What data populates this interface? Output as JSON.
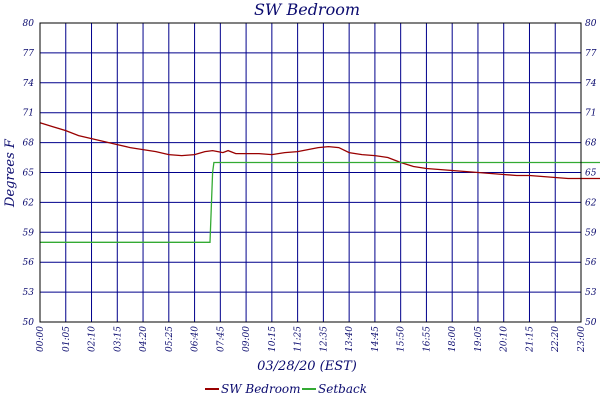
{
  "chart_data": {
    "type": "line",
    "title": "SW Bedroom",
    "xlabel": "03/28/20 (EST)",
    "ylabel": "Degrees F",
    "x_ticks": [
      "00:00",
      "01:05",
      "02:10",
      "03:15",
      "04:20",
      "05:25",
      "06:40",
      "07:45",
      "09:00",
      "10:15",
      "11:25",
      "12:35",
      "13:40",
      "14:45",
      "15:50",
      "16:55",
      "18:00",
      "19:05",
      "20:10",
      "21:15",
      "22:20",
      "23:00"
    ],
    "y_ticks": [
      "50",
      "53",
      "56",
      "59",
      "62",
      "65",
      "68",
      "71",
      "74",
      "77",
      "80"
    ],
    "ylim": [
      50,
      80
    ],
    "grid": true,
    "legend_placement": "bottom",
    "series": [
      {
        "name": "SW Bedroom",
        "color": "#990000",
        "points": [
          [
            0,
            70.0
          ],
          [
            0.5,
            69.6
          ],
          [
            1,
            69.2
          ],
          [
            1.5,
            68.7
          ],
          [
            2,
            68.4
          ],
          [
            2.5,
            68.1
          ],
          [
            3,
            67.8
          ],
          [
            3.5,
            67.5
          ],
          [
            4,
            67.3
          ],
          [
            4.5,
            67.1
          ],
          [
            5,
            66.8
          ],
          [
            5.5,
            66.7
          ],
          [
            6,
            66.8
          ],
          [
            6.4,
            67.1
          ],
          [
            6.7,
            67.2
          ],
          [
            6.9,
            67.1
          ],
          [
            7.1,
            67.0
          ],
          [
            7.3,
            67.2
          ],
          [
            7.6,
            66.9
          ],
          [
            8,
            66.9
          ],
          [
            8.5,
            66.9
          ],
          [
            9,
            66.8
          ],
          [
            9.5,
            67.0
          ],
          [
            10,
            67.1
          ],
          [
            10.4,
            67.3
          ],
          [
            10.8,
            67.5
          ],
          [
            11.2,
            67.6
          ],
          [
            11.6,
            67.5
          ],
          [
            12,
            67.0
          ],
          [
            12.5,
            66.8
          ],
          [
            13,
            66.7
          ],
          [
            13.5,
            66.5
          ],
          [
            14,
            66.0
          ],
          [
            14.5,
            65.6
          ],
          [
            15,
            65.4
          ],
          [
            15.5,
            65.3
          ],
          [
            16,
            65.2
          ],
          [
            16.5,
            65.1
          ],
          [
            17,
            65.0
          ],
          [
            17.5,
            64.9
          ],
          [
            18,
            64.8
          ],
          [
            18.5,
            64.7
          ],
          [
            19,
            64.7
          ],
          [
            19.5,
            64.6
          ],
          [
            20,
            64.5
          ],
          [
            20.5,
            64.4
          ],
          [
            21,
            64.4
          ],
          [
            21.5,
            64.4
          ],
          [
            22,
            64.4
          ],
          [
            22.5,
            64.5
          ],
          [
            22.8,
            64.5
          ]
        ]
      },
      {
        "name": "Setback",
        "color": "#33aa33",
        "points": [
          [
            0,
            58.0
          ],
          [
            6.6,
            58.0
          ],
          [
            6.7,
            65.0
          ],
          [
            6.75,
            66.0
          ],
          [
            22.9,
            66.0
          ],
          [
            22.92,
            60.5
          ],
          [
            23,
            58.0
          ]
        ]
      }
    ]
  }
}
